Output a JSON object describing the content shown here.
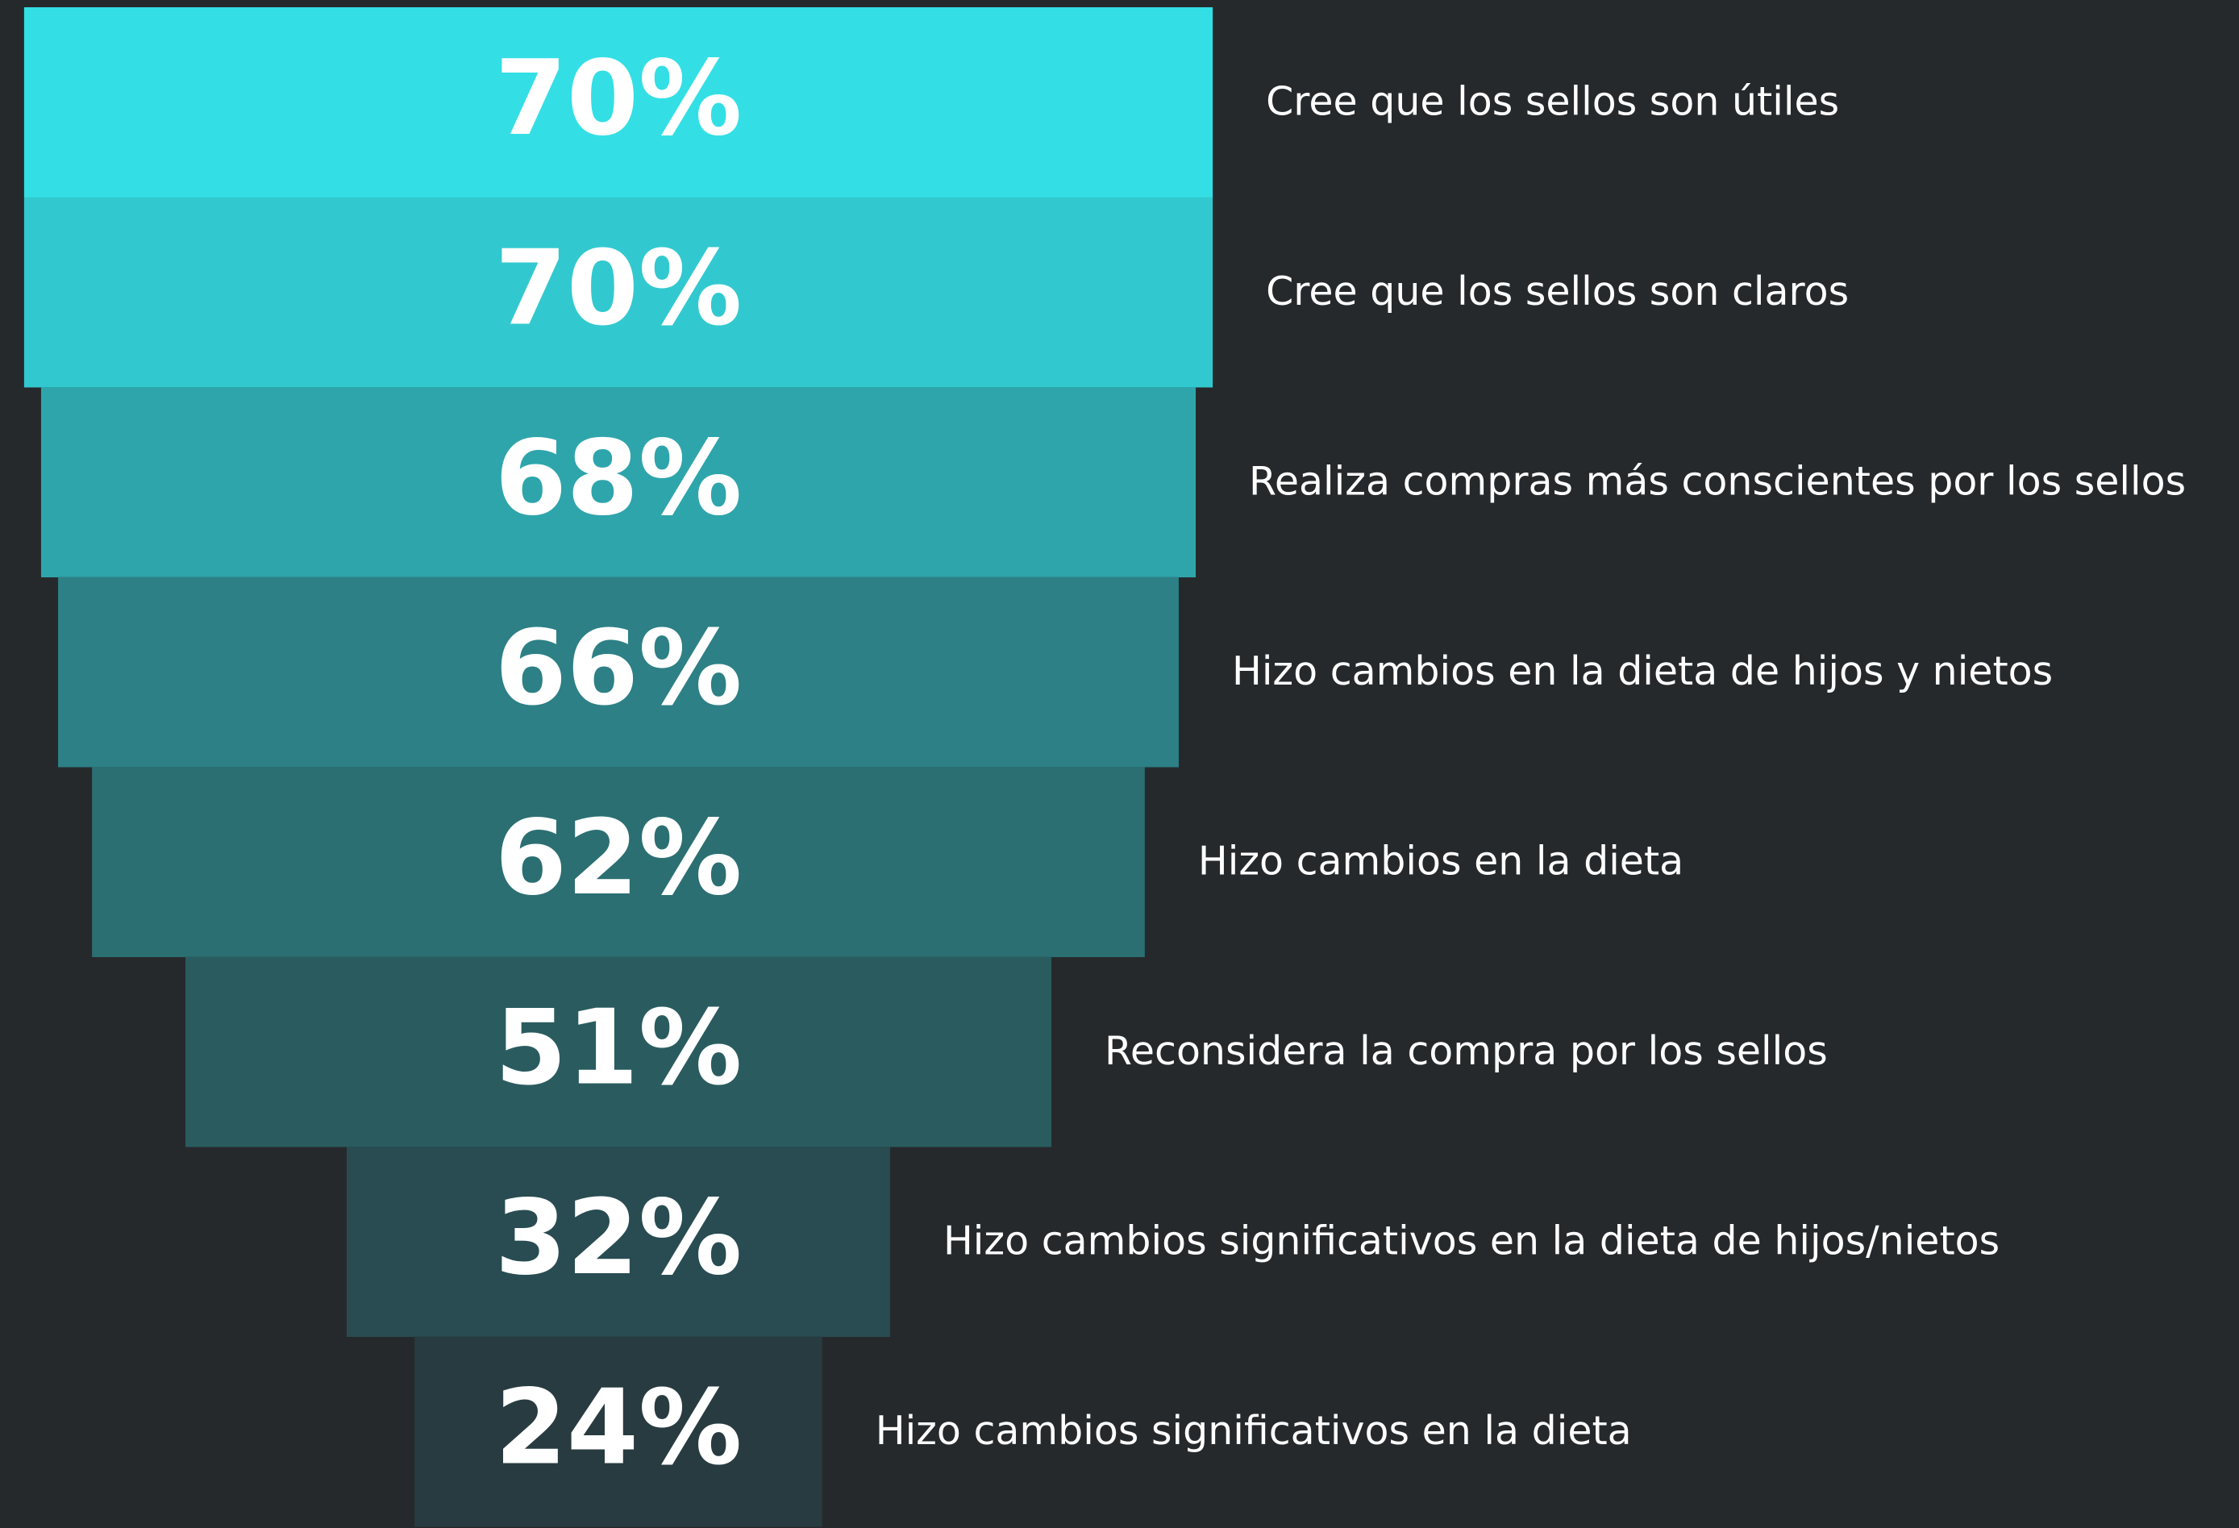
{
  "chart_data": {
    "type": "funnel",
    "categories": [
      "Cree que los sellos son útiles",
      "Cree que los sellos son claros",
      "Realiza compras más conscientes por los sellos",
      "Hizo cambios en la dieta de hijos y nietos",
      "Hizo cambios en la dieta",
      "Reconsidera la compra por los sellos",
      "Hizo cambios significativos en la dieta de hijos/nietos",
      "Hizo cambios significativos en la dieta"
    ],
    "values": [
      70,
      70,
      68,
      66,
      62,
      51,
      32,
      24
    ],
    "value_labels": [
      "70%",
      "70%",
      "68%",
      "66%",
      "62%",
      "51%",
      "32%",
      "24%"
    ],
    "colors": [
      "#33dfe5",
      "#31c9cf",
      "#2ea5ab",
      "#2d8085",
      "#2b6f72",
      "#2a5c5f",
      "#284c51",
      "#283b40"
    ]
  }
}
